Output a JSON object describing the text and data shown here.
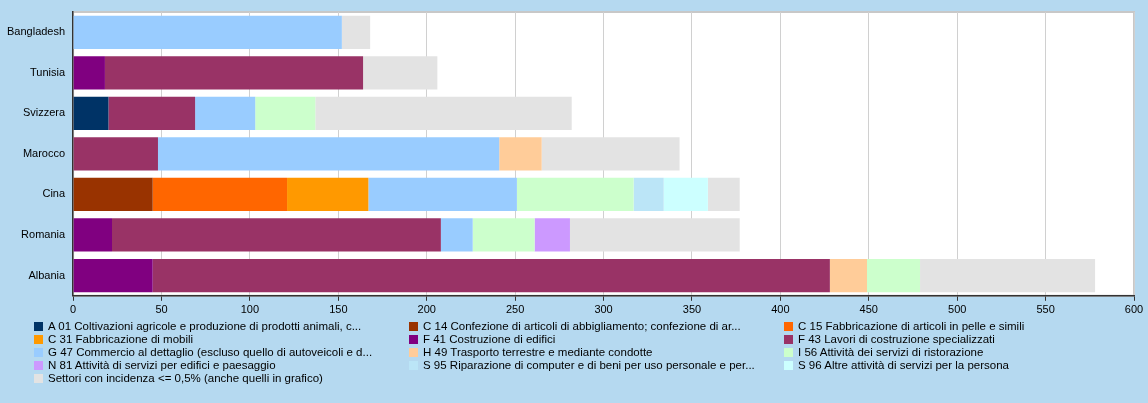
{
  "chart_data": {
    "type": "bar",
    "orientation": "horizontal",
    "stacked": true,
    "categories": [
      "Bangladesh",
      "Tunisia",
      "Svizzera",
      "Marocco",
      "Cina",
      "Romania",
      "Albania"
    ],
    "series": [
      {
        "name": "A 01 Coltivazioni agricole e produzione di prodotti animali, c...",
        "color": "#003366",
        "values": [
          null,
          null,
          20,
          null,
          null,
          null,
          null
        ]
      },
      {
        "name": "C 14 Confezione di articoli di abbigliamento; confezione di ar...",
        "color": "#993300",
        "values": [
          null,
          null,
          null,
          null,
          45,
          null,
          null
        ]
      },
      {
        "name": "C 15 Fabbricazione di articoli in pelle e simili",
        "color": "#ff6600",
        "values": [
          null,
          null,
          null,
          null,
          76,
          null,
          null
        ]
      },
      {
        "name": "C 31 Fabbricazione di mobili",
        "color": "#ff9900",
        "values": [
          null,
          null,
          null,
          null,
          46,
          null,
          null
        ]
      },
      {
        "name": "F 41 Costruzione di edifici",
        "color": "#800080",
        "values": [
          null,
          18,
          null,
          null,
          null,
          22,
          45
        ]
      },
      {
        "name": "F 43 Lavori di costruzione specializzati",
        "color": "#993366",
        "values": [
          null,
          146,
          49,
          48,
          null,
          186,
          383
        ]
      },
      {
        "name": "G 47 Commercio al dettaglio (escluso quello di autoveicoli e d...",
        "color": "#99ccff",
        "values": [
          152,
          null,
          34,
          193,
          84,
          18,
          null
        ]
      },
      {
        "name": "H 49 Trasporto terrestre e mediante condotte",
        "color": "#ffcc99",
        "values": [
          null,
          null,
          null,
          24,
          null,
          null,
          21
        ]
      },
      {
        "name": "I 56 Attività dei servizi di ristorazione",
        "color": "#ccffcc",
        "values": [
          null,
          null,
          34,
          null,
          66,
          35,
          30
        ]
      },
      {
        "name": "N 81 Attività di servizi per edifici e paesaggio",
        "color": "#cc99ff",
        "values": [
          null,
          null,
          null,
          null,
          null,
          20,
          null
        ]
      },
      {
        "name": "S 95 Riparazione di computer e di beni per uso personale e per...",
        "color": "#bbe5f7",
        "values": [
          null,
          null,
          null,
          null,
          17,
          null,
          null
        ]
      },
      {
        "name": "S 96 Altre attività di servizi per la persona",
        "color": "#ccffff",
        "values": [
          null,
          null,
          null,
          null,
          25,
          null,
          null
        ]
      },
      {
        "name": "Settori con incidenza <= 0,5% (anche quelli in grafico)",
        "color": "#e3e3e3",
        "values": [
          16,
          42,
          145,
          78,
          18,
          96,
          99
        ]
      }
    ],
    "xlim": [
      0,
      600
    ],
    "xticks": [
      0,
      50,
      100,
      150,
      200,
      250,
      300,
      350,
      400,
      450,
      500,
      550,
      600
    ],
    "grid": "x",
    "legend": "bottom"
  }
}
